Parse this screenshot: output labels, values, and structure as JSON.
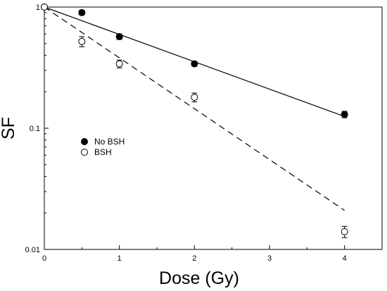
{
  "chart_data": {
    "type": "scatter",
    "xlabel": "Dose (Gy)",
    "ylabel": "SF",
    "xlim": [
      0,
      4.5
    ],
    "ylim": [
      0.01,
      1
    ],
    "yscale": "log",
    "xticks": [
      "0",
      "1",
      "2",
      "3",
      "4"
    ],
    "yticks": [
      "0.01",
      "0.1",
      "1"
    ],
    "legend_position": "left",
    "series": [
      {
        "name": "No BSH",
        "marker": "filled-circle",
        "color": "#000000",
        "x": [
          0,
          0.5,
          1,
          2,
          4
        ],
        "y": [
          1,
          0.9,
          0.57,
          0.34,
          0.13
        ],
        "yerr": [
          0,
          0.04,
          0.03,
          0.015,
          0.008
        ]
      },
      {
        "name": "BSH",
        "marker": "open-circle",
        "color": "#000000",
        "x": [
          0,
          0.5,
          1,
          2,
          4
        ],
        "y": [
          1,
          0.52,
          0.34,
          0.18,
          0.014
        ],
        "yerr": [
          0,
          0.05,
          0.025,
          0.015,
          0.0015
        ]
      }
    ],
    "fits": [
      {
        "series": "No BSH",
        "style": "solid",
        "x": [
          0,
          4
        ],
        "y": [
          1,
          0.125
        ]
      },
      {
        "series": "BSH",
        "style": "dashed",
        "x": [
          0,
          4
        ],
        "y": [
          1,
          0.021
        ]
      }
    ]
  }
}
